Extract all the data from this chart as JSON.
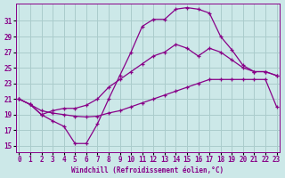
{
  "xlabel": "Windchill (Refroidissement éolien,°C)",
  "bg_color": "#cce8e8",
  "line_color": "#880088",
  "grid_color": "#aacccc",
  "xlim": [
    -0.3,
    23.3
  ],
  "ylim": [
    14.2,
    33.2
  ],
  "yticks": [
    15,
    17,
    19,
    21,
    23,
    25,
    27,
    29,
    31
  ],
  "xticks": [
    0,
    1,
    2,
    3,
    4,
    5,
    6,
    7,
    8,
    9,
    10,
    11,
    12,
    13,
    14,
    15,
    16,
    17,
    18,
    19,
    20,
    21,
    22,
    23
  ],
  "curve1_x": [
    0,
    1,
    2,
    3,
    4,
    5,
    6,
    7,
    8,
    9,
    10,
    11,
    12,
    13,
    14,
    15,
    16,
    17,
    18,
    19,
    20,
    21,
    22,
    23
  ],
  "curve1_y": [
    21.0,
    20.3,
    19.0,
    18.2,
    17.5,
    15.3,
    15.3,
    17.8,
    21.0,
    24.0,
    27.0,
    30.3,
    31.2,
    31.2,
    32.5,
    32.7,
    32.5,
    32.0,
    29.0,
    27.3,
    25.3,
    24.5,
    24.5,
    24.0
  ],
  "curve2_x": [
    0,
    1,
    2,
    3,
    4,
    5,
    6,
    7,
    8,
    9,
    10,
    11,
    12,
    13,
    14,
    15,
    16,
    17,
    18,
    19,
    20,
    21,
    22,
    23
  ],
  "curve2_y": [
    21.0,
    20.3,
    19.0,
    19.5,
    19.8,
    19.8,
    20.2,
    21.0,
    22.5,
    23.5,
    24.5,
    25.5,
    26.5,
    27.0,
    28.0,
    27.5,
    26.5,
    27.5,
    27.0,
    26.0,
    25.0,
    24.5,
    24.5,
    24.0
  ],
  "curve3_x": [
    0,
    1,
    2,
    3,
    4,
    5,
    6,
    7,
    8,
    9,
    10,
    11,
    12,
    13,
    14,
    15,
    16,
    17,
    18,
    19,
    20,
    21,
    22,
    23
  ],
  "curve3_y": [
    21.0,
    20.3,
    19.5,
    19.2,
    19.0,
    18.8,
    18.7,
    18.8,
    19.2,
    19.5,
    20.0,
    20.5,
    21.0,
    21.5,
    22.0,
    22.5,
    23.0,
    23.5,
    23.5,
    23.5,
    23.5,
    23.5,
    23.5,
    20.0
  ]
}
